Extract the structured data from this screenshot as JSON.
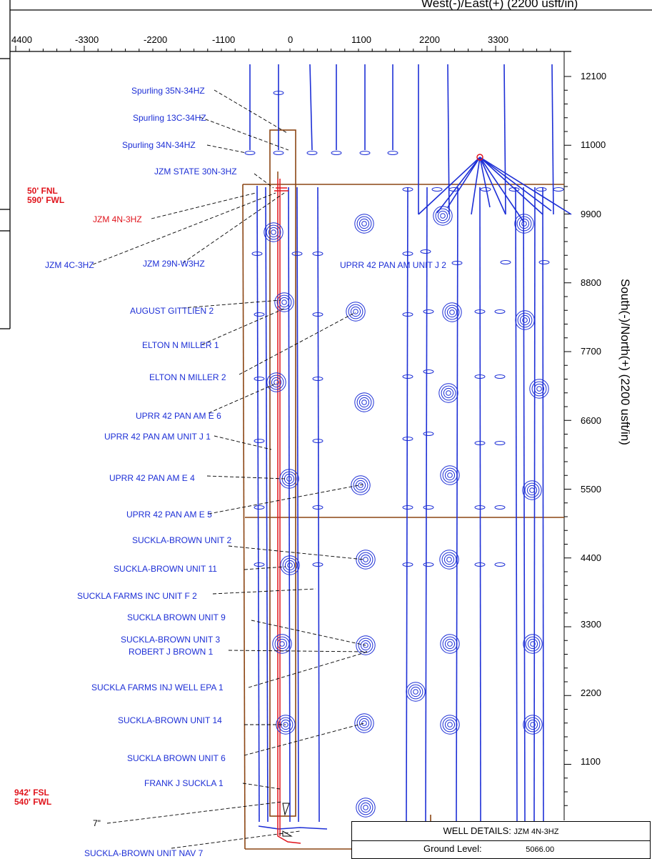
{
  "x_axis": {
    "title": "West(-)/East(+) (2200 usft/in)",
    "ticks": [
      "4400",
      "-3300",
      "-2200",
      "-1100",
      "0",
      "1100",
      "2200",
      "3300"
    ]
  },
  "y_axis": {
    "title": "South(-)/North(+) (2200 usft/in)",
    "ticks": [
      "12100",
      "11000",
      "9900",
      "8800",
      "7700",
      "6600",
      "5500",
      "4400",
      "3300",
      "2200",
      "1100"
    ]
  },
  "well_labels": [
    "Spurling 35N-34HZ",
    "Spurling 13C-34HZ",
    "Spurling 34N-34HZ",
    "JZM STATE 30N-3HZ",
    "JZM 4N-3HZ",
    "JZM 4C-3HZ",
    "JZM 29N-W3HZ",
    "UPRR 42 PAN AM UNIT J 2",
    "AUGUST GITTLIEN 2",
    "ELTON N MILLER 1",
    "ELTON N MILLER 2",
    "UPRR 42 PAN AM E 6",
    "UPRR 42 PAN AM UNIT J 1",
    "UPRR 42 PAN AM E 4",
    "UPRR 42 PAN AM E 5",
    "SUCKLA-BROWN UNIT 2",
    "SUCKLA-BROWN UNIT 11",
    "SUCKLA FARMS INC UNIT F 2",
    "SUCKLA BROWN UNIT 9",
    "SUCKLA-BROWN UNIT 3",
    "ROBERT J BROWN 1",
    "SUCKLA FARMS INJ WELL EPA 1",
    "SUCKLA-BROWN UNIT 14",
    "SUCKLA BROWN UNIT 6",
    "FRANK J SUCKLA 1",
    "7\"",
    "SUCKLA-BROWN UNIT NAV 7"
  ],
  "setbacks": {
    "top": [
      "50' FNL",
      "590' FWL"
    ],
    "bottom": [
      "942' FSL",
      "540' FWL"
    ]
  },
  "well_details": {
    "title": "WELL DETAILS:",
    "well": "JZM 4N-3HZ",
    "ground_level_label": "Ground Level:",
    "ground_level_value": "5066.00"
  },
  "colors": {
    "wells": "#1d2fd6",
    "subject_well": "#e0141c",
    "lease": "#8b4513"
  }
}
